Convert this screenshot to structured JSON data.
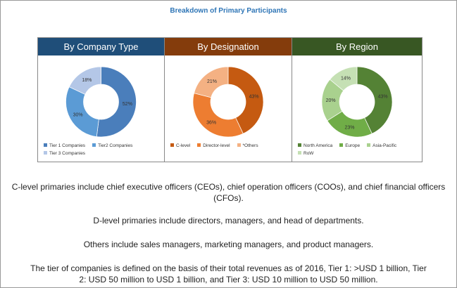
{
  "title": "Breakdown of Primary Participants",
  "chart_data": [
    {
      "type": "pie",
      "title": "By Company Type",
      "header_color": "#1f4e79",
      "categories": [
        "Tier 1 Companies",
        "Tier2 Companies",
        "Tier 3 Companies"
      ],
      "values": [
        52,
        30,
        18
      ],
      "labels": [
        "52%",
        "30%",
        "18%"
      ],
      "colors": [
        "#4a7ebb",
        "#5b9bd5",
        "#b4c7e7"
      ]
    },
    {
      "type": "pie",
      "title": "By Designation",
      "header_color": "#843c0c",
      "categories": [
        "C-level",
        "Director-level",
        "*Others"
      ],
      "values": [
        43,
        36,
        21
      ],
      "labels": [
        "43%",
        "36%",
        "21%"
      ],
      "colors": [
        "#c55a11",
        "#ed7d31",
        "#f4b183"
      ]
    },
    {
      "type": "pie",
      "title": "By Region",
      "header_color": "#385723",
      "categories": [
        "North America",
        "Europe",
        "Asia-Pacific",
        "RoW"
      ],
      "values": [
        43,
        23,
        20,
        14
      ],
      "labels": [
        "43%",
        "23%",
        "20%",
        "14%"
      ],
      "colors": [
        "#548235",
        "#70ad47",
        "#a9d18e",
        "#c5e0b4"
      ]
    }
  ],
  "notes": [
    "C-level primaries include chief executive officers (CEOs), chief operation officers (COOs), and chief financial officers (CFOs).",
    "D-level primaries include directors, managers, and head of departments.",
    "Others include sales managers, marketing managers, and product managers.",
    "The tier of companies is defined on the basis of their total revenues as of 2016, Tier 1: >USD 1 billion, Tier 2: USD 50 million to USD 1 billion, and Tier 3: USD 10 million to USD 50 million."
  ]
}
